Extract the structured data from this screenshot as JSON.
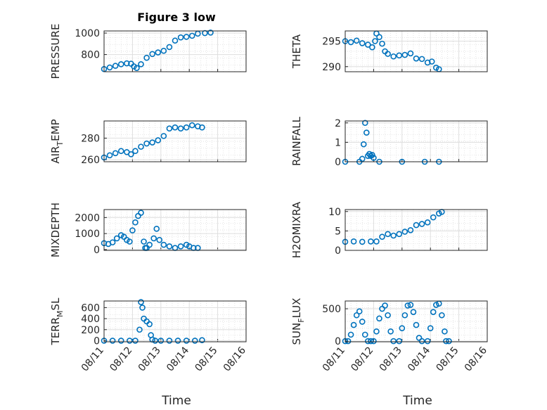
{
  "figure": {
    "title": "Figure 3 low",
    "xlabel": "Time",
    "marker_color": "#0072BD"
  },
  "chart_data": [
    {
      "type": "scatter",
      "ylabel": "PRESSURE",
      "title": "Figure 3 low",
      "xlim": [
        "08/11",
        "08/16"
      ],
      "ylim": [
        640,
        1020
      ],
      "yticks": [
        800,
        1000
      ],
      "xticks": [
        "08/11",
        "08/12",
        "08/13",
        "08/14",
        "08/15",
        "08/16"
      ],
      "show_xticklabels": false,
      "grid": true,
      "points": [
        [
          0,
          665
        ],
        [
          0.2,
          680
        ],
        [
          0.4,
          695
        ],
        [
          0.6,
          710
        ],
        [
          0.8,
          718
        ],
        [
          0.95,
          715
        ],
        [
          1.05,
          690
        ],
        [
          1.15,
          675
        ],
        [
          1.3,
          710
        ],
        [
          1.5,
          770
        ],
        [
          1.7,
          805
        ],
        [
          1.9,
          820
        ],
        [
          2.1,
          835
        ],
        [
          2.3,
          870
        ],
        [
          2.5,
          930
        ],
        [
          2.7,
          960
        ],
        [
          2.9,
          965
        ],
        [
          3.1,
          975
        ],
        [
          3.3,
          995
        ],
        [
          3.55,
          1000
        ],
        [
          3.75,
          1005
        ]
      ]
    },
    {
      "type": "scatter",
      "ylabel": "THETA",
      "xlim": [
        "08/11",
        "08/16"
      ],
      "ylim": [
        289,
        297
      ],
      "yticks": [
        290,
        295
      ],
      "xticks": [
        "08/11",
        "08/12",
        "08/13",
        "08/14",
        "08/15",
        "08/16"
      ],
      "show_xticklabels": false,
      "grid": true,
      "points": [
        [
          0,
          295
        ],
        [
          0.2,
          294.8
        ],
        [
          0.4,
          295.1
        ],
        [
          0.6,
          294.6
        ],
        [
          0.8,
          294.3
        ],
        [
          0.95,
          293.8
        ],
        [
          1.05,
          295
        ],
        [
          1.1,
          296.5
        ],
        [
          1.2,
          295.8
        ],
        [
          1.3,
          294.5
        ],
        [
          1.4,
          293
        ],
        [
          1.5,
          292.5
        ],
        [
          1.7,
          292
        ],
        [
          1.9,
          292.2
        ],
        [
          2.1,
          292.3
        ],
        [
          2.3,
          292.6
        ],
        [
          2.5,
          291.6
        ],
        [
          2.7,
          291.5
        ],
        [
          2.9,
          290.8
        ],
        [
          3.05,
          291
        ],
        [
          3.2,
          289.8
        ],
        [
          3.3,
          289.5
        ]
      ]
    },
    {
      "type": "scatter",
      "ylabel": "AIR_TEMP",
      "xlim": [
        "08/11",
        "08/16"
      ],
      "ylim": [
        258,
        296
      ],
      "yticks": [
        260,
        280
      ],
      "xticks": [
        "08/11",
        "08/12",
        "08/13",
        "08/14",
        "08/15",
        "08/16"
      ],
      "show_xticklabels": false,
      "grid": true,
      "points": [
        [
          0,
          262
        ],
        [
          0.2,
          264
        ],
        [
          0.4,
          266
        ],
        [
          0.6,
          268
        ],
        [
          0.8,
          267
        ],
        [
          0.95,
          265
        ],
        [
          1.1,
          268
        ],
        [
          1.3,
          272
        ],
        [
          1.5,
          275
        ],
        [
          1.7,
          276
        ],
        [
          1.9,
          278
        ],
        [
          2.1,
          282
        ],
        [
          2.3,
          289
        ],
        [
          2.5,
          290
        ],
        [
          2.7,
          289
        ],
        [
          2.9,
          290
        ],
        [
          3.1,
          292
        ],
        [
          3.3,
          291
        ],
        [
          3.45,
          290
        ]
      ]
    },
    {
      "type": "scatter",
      "ylabel": "RAINFALL",
      "xlim": [
        "08/11",
        "08/16"
      ],
      "ylim": [
        0,
        2.1
      ],
      "yticks": [
        0,
        1,
        2
      ],
      "xticks": [
        "08/11",
        "08/12",
        "08/13",
        "08/14",
        "08/15",
        "08/16"
      ],
      "show_xticklabels": false,
      "grid": true,
      "points": [
        [
          0,
          0
        ],
        [
          0.5,
          0
        ],
        [
          0.6,
          0.15
        ],
        [
          0.65,
          0.9
        ],
        [
          0.7,
          2.0
        ],
        [
          0.75,
          1.5
        ],
        [
          0.8,
          0.3
        ],
        [
          0.85,
          0.4
        ],
        [
          0.9,
          0.3
        ],
        [
          0.95,
          0.35
        ],
        [
          1.0,
          0.2
        ],
        [
          1.2,
          0
        ],
        [
          2,
          0
        ],
        [
          2.8,
          0
        ],
        [
          3.3,
          0
        ]
      ]
    },
    {
      "type": "scatter",
      "ylabel": "MIXDEPTH",
      "xlim": [
        "08/11",
        "08/16"
      ],
      "ylim": [
        -50,
        2500
      ],
      "yticks": [
        0,
        1000,
        2000
      ],
      "xticks": [
        "08/11",
        "08/12",
        "08/13",
        "08/14",
        "08/15",
        "08/16"
      ],
      "show_xticklabels": false,
      "grid": true,
      "points": [
        [
          0,
          400
        ],
        [
          0.15,
          350
        ],
        [
          0.3,
          450
        ],
        [
          0.45,
          700
        ],
        [
          0.6,
          900
        ],
        [
          0.7,
          800
        ],
        [
          0.8,
          600
        ],
        [
          0.9,
          500
        ],
        [
          1.0,
          1200
        ],
        [
          1.1,
          1700
        ],
        [
          1.2,
          2100
        ],
        [
          1.3,
          2300
        ],
        [
          1.4,
          500
        ],
        [
          1.45,
          100
        ],
        [
          1.5,
          100
        ],
        [
          1.6,
          300
        ],
        [
          1.75,
          700
        ],
        [
          1.85,
          1300
        ],
        [
          1.95,
          600
        ],
        [
          2.1,
          300
        ],
        [
          2.3,
          200
        ],
        [
          2.5,
          100
        ],
        [
          2.7,
          200
        ],
        [
          2.9,
          300
        ],
        [
          3.0,
          200
        ],
        [
          3.15,
          100
        ],
        [
          3.3,
          100
        ]
      ]
    },
    {
      "type": "scatter",
      "ylabel": "H2OMIXRA",
      "xlim": [
        "08/11",
        "08/16"
      ],
      "ylim": [
        0,
        10.5
      ],
      "yticks": [
        0,
        5,
        10
      ],
      "xticks": [
        "08/11",
        "08/12",
        "08/13",
        "08/14",
        "08/15",
        "08/16"
      ],
      "show_xticklabels": false,
      "grid": true,
      "points": [
        [
          0,
          2.2
        ],
        [
          0.3,
          2.3
        ],
        [
          0.6,
          2.2
        ],
        [
          0.9,
          2.3
        ],
        [
          1.1,
          2.3
        ],
        [
          1.3,
          3.5
        ],
        [
          1.5,
          4.2
        ],
        [
          1.7,
          3.8
        ],
        [
          1.9,
          4.2
        ],
        [
          2.1,
          4.8
        ],
        [
          2.3,
          5.2
        ],
        [
          2.5,
          6.5
        ],
        [
          2.7,
          6.8
        ],
        [
          2.9,
          7.2
        ],
        [
          3.1,
          8.5
        ],
        [
          3.3,
          9.5
        ],
        [
          3.4,
          9.9
        ]
      ]
    },
    {
      "type": "scatter",
      "ylabel": "TERR_MSL",
      "xlim": [
        "08/11",
        "08/16"
      ],
      "ylim": [
        -20,
        720
      ],
      "yticks": [
        0,
        200,
        400,
        600
      ],
      "xticks": [
        "08/11",
        "08/12",
        "08/13",
        "08/14",
        "08/15",
        "08/16"
      ],
      "show_xticklabels": true,
      "grid": true,
      "points": [
        [
          0,
          0
        ],
        [
          0.3,
          0
        ],
        [
          0.6,
          0
        ],
        [
          0.9,
          0
        ],
        [
          1.1,
          0
        ],
        [
          1.25,
          200
        ],
        [
          1.3,
          700
        ],
        [
          1.35,
          600
        ],
        [
          1.4,
          400
        ],
        [
          1.5,
          350
        ],
        [
          1.6,
          300
        ],
        [
          1.65,
          100
        ],
        [
          1.7,
          20
        ],
        [
          1.8,
          0
        ],
        [
          2.0,
          0
        ],
        [
          2.3,
          0
        ],
        [
          2.6,
          0
        ],
        [
          2.9,
          0
        ],
        [
          3.2,
          0
        ],
        [
          3.45,
          10
        ]
      ]
    },
    {
      "type": "scatter",
      "ylabel": "SUN_FLUX",
      "xlim": [
        "08/11",
        "08/16"
      ],
      "ylim": [
        -10,
        620
      ],
      "yticks": [
        0,
        500
      ],
      "xticks": [
        "08/11",
        "08/12",
        "08/13",
        "08/14",
        "08/15",
        "08/16"
      ],
      "show_xticklabels": true,
      "grid": true,
      "points": [
        [
          0,
          0
        ],
        [
          0.1,
          0
        ],
        [
          0.2,
          100
        ],
        [
          0.3,
          250
        ],
        [
          0.4,
          400
        ],
        [
          0.5,
          460
        ],
        [
          0.6,
          300
        ],
        [
          0.7,
          100
        ],
        [
          0.8,
          0
        ],
        [
          0.9,
          0
        ],
        [
          1.0,
          0
        ],
        [
          1.1,
          150
        ],
        [
          1.2,
          350
        ],
        [
          1.3,
          500
        ],
        [
          1.4,
          550
        ],
        [
          1.5,
          400
        ],
        [
          1.6,
          150
        ],
        [
          1.7,
          0
        ],
        [
          1.9,
          0
        ],
        [
          2.0,
          200
        ],
        [
          2.1,
          400
        ],
        [
          2.2,
          550
        ],
        [
          2.3,
          560
        ],
        [
          2.4,
          450
        ],
        [
          2.5,
          250
        ],
        [
          2.6,
          50
        ],
        [
          2.7,
          0
        ],
        [
          2.9,
          0
        ],
        [
          3.0,
          200
        ],
        [
          3.1,
          450
        ],
        [
          3.2,
          560
        ],
        [
          3.3,
          580
        ],
        [
          3.4,
          400
        ],
        [
          3.5,
          150
        ],
        [
          3.55,
          0
        ],
        [
          3.65,
          0
        ]
      ]
    }
  ]
}
